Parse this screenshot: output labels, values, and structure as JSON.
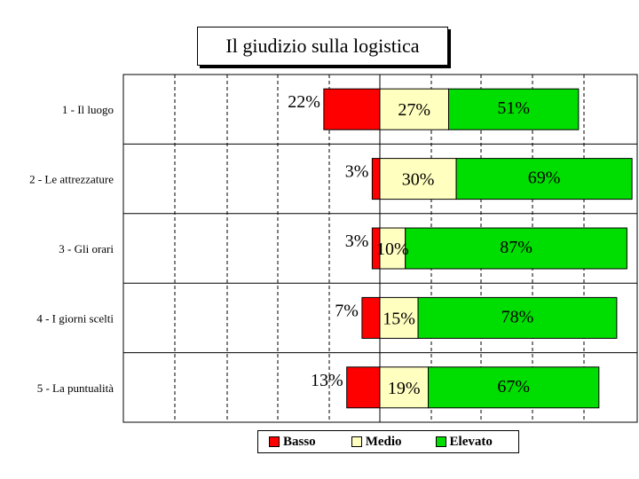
{
  "chart_data": {
    "type": "bar",
    "orientation": "horizontal",
    "stacked": true,
    "diverging": true,
    "title": "Il giudizio sulla logistica",
    "categories": [
      "1 - Il luogo",
      "2 - Le attrezzature",
      "3 - Gli orari",
      "4 - I giorni scelti",
      "5 - La puntualità"
    ],
    "series": [
      {
        "name": "Basso",
        "color": "#ff0000",
        "values": [
          22,
          3,
          3,
          7,
          13
        ],
        "labels": [
          "22%",
          "3%",
          "3%",
          "7%",
          "13%"
        ]
      },
      {
        "name": "Medio",
        "color": "#ffffc0",
        "values": [
          27,
          30,
          10,
          15,
          19
        ],
        "labels": [
          "27%",
          "30%",
          "10%",
          "15%",
          "19%"
        ]
      },
      {
        "name": "Elevato",
        "color": "#00dd00",
        "values": [
          51,
          69,
          87,
          78,
          67
        ],
        "labels": [
          "51%",
          "69%",
          "87%",
          "78%",
          "67%"
        ]
      }
    ],
    "grid": true,
    "legend_position": "bottom",
    "xlabel": "",
    "ylabel": ""
  }
}
